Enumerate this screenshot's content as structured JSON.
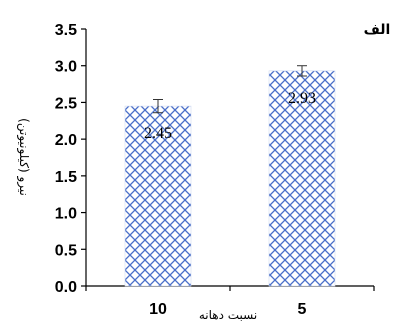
{
  "chart_data": {
    "type": "bar",
    "panel_label": "الف",
    "categories": [
      "10",
      "5"
    ],
    "values": [
      2.45,
      2.93
    ],
    "errors": [
      0.09,
      0.07
    ],
    "data_labels": [
      "2.45",
      "2.93"
    ],
    "xlabel": "نسبت دهانه",
    "ylabel": "نیرو (کیلونیوتن)",
    "ylim": [
      0,
      3.5
    ],
    "yticks": [
      "0.0",
      "0.5",
      "1.0",
      "1.5",
      "2.0",
      "2.5",
      "3.0",
      "3.5"
    ],
    "grid": false,
    "bar_color": "#4a6fc9",
    "bar_fill_pattern": "diamond-lattice"
  }
}
